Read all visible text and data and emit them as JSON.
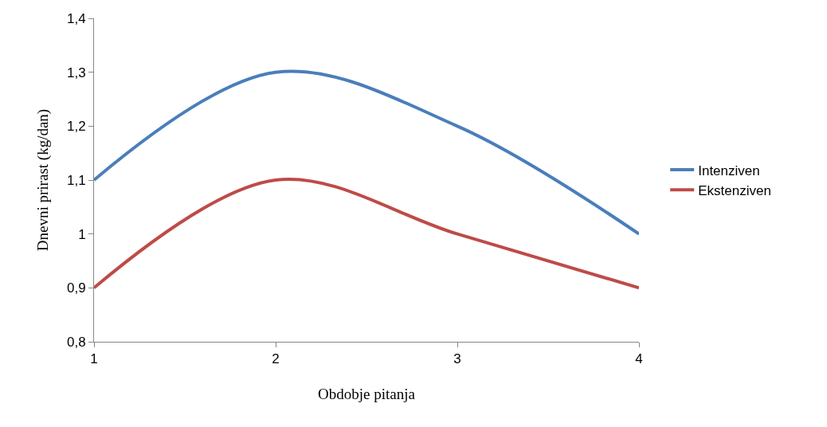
{
  "chart_data": {
    "type": "line",
    "xlabel": "Obdobje pitanja",
    "ylabel": "Dnevni prirast (kg/dan)",
    "x": [
      1,
      2,
      3,
      4
    ],
    "series": [
      {
        "name": "Intenziven",
        "color": "#4a7ebb",
        "values": [
          1.1,
          1.3,
          1.2,
          1.0
        ]
      },
      {
        "name": "Ekstenziven",
        "color": "#be4b48",
        "values": [
          0.9,
          1.1,
          1.0,
          0.9
        ]
      }
    ],
    "xlim": [
      1,
      4
    ],
    "xticks": [
      1,
      2,
      3,
      4
    ],
    "ylim": [
      0.8,
      1.4
    ],
    "yticks": [
      {
        "value": 0.8,
        "label": "0,8"
      },
      {
        "value": 0.9,
        "label": "0,9"
      },
      {
        "value": 1.0,
        "label": "1"
      },
      {
        "value": 1.1,
        "label": "1,1"
      },
      {
        "value": 1.2,
        "label": "1,2"
      },
      {
        "value": 1.3,
        "label": "1,3"
      },
      {
        "value": 1.4,
        "label": "1,4"
      }
    ],
    "grid": false,
    "legend": "right",
    "marker": "none",
    "line_style": "solid"
  }
}
